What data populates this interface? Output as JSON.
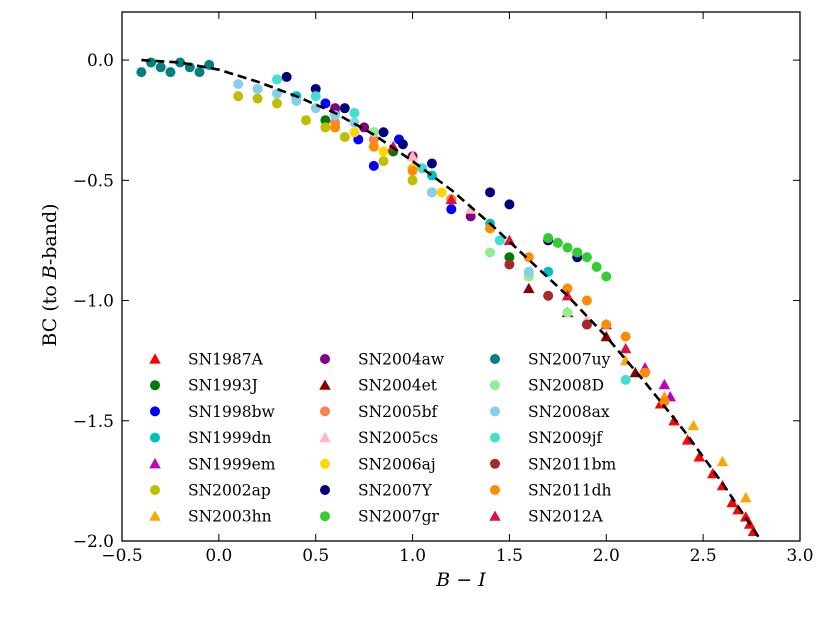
{
  "chart_data": {
    "type": "scatter",
    "xlabel": "B − I",
    "ylabel": "BC (to B-band)",
    "xlim": [
      -0.5,
      3.0
    ],
    "ylim": [
      -2.0,
      0.2
    ],
    "xticks": [
      "−0.5",
      "0.0",
      "0.5",
      "1.0",
      "1.5",
      "2.0",
      "2.5",
      "3.0"
    ],
    "yticks": [
      "0.0",
      "−0.5",
      "−1.0",
      "−1.5",
      "−2.0"
    ],
    "grid": false,
    "legend_position": "lower-left",
    "fit_curve": {
      "style": "dashed",
      "color": "#000000",
      "x": [
        -0.4,
        -0.2,
        0.0,
        0.2,
        0.4,
        0.6,
        0.8,
        1.0,
        1.2,
        1.4,
        1.6,
        1.8,
        2.0,
        2.2,
        2.4,
        2.6,
        2.8
      ],
      "y": [
        0.0,
        -0.01,
        -0.04,
        -0.09,
        -0.15,
        -0.22,
        -0.31,
        -0.42,
        -0.54,
        -0.68,
        -0.83,
        -0.98,
        -1.15,
        -1.34,
        -1.54,
        -1.76,
        -2.0
      ]
    },
    "series": [
      {
        "name": "SN1987A",
        "marker": "triangle",
        "color": "#ff0000",
        "x": [
          2.28,
          2.35,
          2.42,
          2.48,
          2.55,
          2.6,
          2.65,
          2.68,
          2.72,
          2.74,
          2.76
        ],
        "y": [
          -1.43,
          -1.5,
          -1.58,
          -1.65,
          -1.72,
          -1.77,
          -1.84,
          -1.87,
          -1.9,
          -1.93,
          -1.96
        ]
      },
      {
        "name": "SN1993J",
        "marker": "circle",
        "color": "#007a00",
        "x": [
          0.55,
          0.9,
          1.2,
          1.5
        ],
        "y": [
          -0.25,
          -0.38,
          -0.58,
          -0.82
        ]
      },
      {
        "name": "SN1998bw",
        "marker": "circle",
        "color": "#0000ff",
        "x": [
          0.55,
          0.72,
          0.8,
          0.93,
          1.2
        ],
        "y": [
          -0.18,
          -0.33,
          -0.44,
          -0.33,
          -0.62
        ]
      },
      {
        "name": "SN1999dn",
        "marker": "circle",
        "color": "#00bfbf",
        "x": [
          0.4,
          0.6,
          0.8,
          1.1,
          1.4,
          1.7
        ],
        "y": [
          -0.15,
          -0.22,
          -0.3,
          -0.48,
          -0.68,
          -0.88
        ]
      },
      {
        "name": "SN1999em",
        "marker": "triangle",
        "color": "#bf00bf",
        "x": [
          2.0,
          2.2,
          2.3,
          2.33
        ],
        "y": [
          -1.1,
          -1.28,
          -1.35,
          -1.4
        ]
      },
      {
        "name": "SN2002ap",
        "marker": "circle",
        "color": "#bfbf00",
        "x": [
          0.1,
          0.2,
          0.3,
          0.45,
          0.55,
          0.65,
          0.85,
          1.0
        ],
        "y": [
          -0.15,
          -0.16,
          -0.18,
          -0.25,
          -0.28,
          -0.32,
          -0.42,
          -0.5
        ]
      },
      {
        "name": "SN2003hn",
        "marker": "triangle",
        "color": "#ffa500",
        "x": [
          2.1,
          2.3,
          2.45,
          2.6,
          2.72
        ],
        "y": [
          -1.25,
          -1.4,
          -1.52,
          -1.67,
          -1.82
        ]
      },
      {
        "name": "SN2004aw",
        "marker": "circle",
        "color": "#800080",
        "x": [
          0.6,
          0.75,
          1.0,
          1.3
        ],
        "y": [
          -0.2,
          -0.28,
          -0.4,
          -0.65
        ]
      },
      {
        "name": "SN2004et",
        "marker": "triangle",
        "color": "#8b0000",
        "x": [
          1.6,
          1.8,
          2.0,
          2.15
        ],
        "y": [
          -0.95,
          -1.05,
          -1.15,
          -1.3
        ]
      },
      {
        "name": "SN2005bf",
        "marker": "circle",
        "color": "#ff7f50",
        "x": [
          0.6,
          0.8,
          1.0,
          1.2
        ],
        "y": [
          -0.26,
          -0.33,
          -0.45,
          -0.58
        ]
      },
      {
        "name": "SN2005cs",
        "marker": "triangle",
        "color": "#ffb6c1",
        "x": [
          1.0,
          1.3,
          1.6,
          1.9
        ],
        "y": [
          -0.4,
          -0.62,
          -0.88,
          -1.08
        ]
      },
      {
        "name": "SN2006aj",
        "marker": "circle",
        "color": "#ffd700",
        "x": [
          0.7,
          0.85,
          1.0,
          1.15
        ],
        "y": [
          -0.3,
          -0.38,
          -0.45,
          -0.55
        ]
      },
      {
        "name": "SN2007Y",
        "marker": "circle",
        "color": "#000080",
        "x": [
          0.35,
          0.5,
          0.65,
          0.85,
          0.95,
          1.1,
          1.4,
          1.5,
          1.7,
          1.85
        ],
        "y": [
          -0.07,
          -0.12,
          -0.2,
          -0.3,
          -0.35,
          -0.43,
          -0.55,
          -0.6,
          -0.75,
          -0.82
        ]
      },
      {
        "name": "SN2007gr",
        "marker": "circle",
        "color": "#32cd32",
        "x": [
          1.7,
          1.75,
          1.8,
          1.85,
          1.9,
          1.95,
          2.0
        ],
        "y": [
          -0.74,
          -0.76,
          -0.78,
          -0.8,
          -0.82,
          -0.86,
          -0.9
        ]
      },
      {
        "name": "SN2007uy",
        "marker": "circle",
        "color": "#008080",
        "x": [
          -0.4,
          -0.35,
          -0.3,
          -0.25,
          -0.2,
          -0.15,
          -0.1,
          -0.05
        ],
        "y": [
          -0.05,
          -0.01,
          -0.03,
          -0.05,
          -0.01,
          -0.03,
          -0.05,
          -0.02
        ]
      },
      {
        "name": "SN2008D",
        "marker": "circle",
        "color": "#90ee90",
        "x": [
          0.8,
          1.1,
          1.4,
          1.6,
          1.8
        ],
        "y": [
          -0.3,
          -0.55,
          -0.8,
          -0.9,
          -1.05
        ]
      },
      {
        "name": "SN2008ax",
        "marker": "circle",
        "color": "#87ceeb",
        "x": [
          0.1,
          0.2,
          0.3,
          0.4,
          0.5,
          0.6,
          0.7,
          1.1,
          1.6
        ],
        "y": [
          -0.1,
          -0.12,
          -0.14,
          -0.17,
          -0.2,
          -0.23,
          -0.26,
          -0.55,
          -0.88
        ]
      },
      {
        "name": "SN2009jf",
        "marker": "circle",
        "color": "#40e0d0",
        "x": [
          0.3,
          0.5,
          0.7,
          1.05,
          1.45,
          2.1
        ],
        "y": [
          -0.08,
          -0.15,
          -0.22,
          -0.45,
          -0.75,
          -1.33
        ]
      },
      {
        "name": "SN2011bm",
        "marker": "circle",
        "color": "#a52a2a",
        "x": [
          1.5,
          1.7,
          1.9
        ],
        "y": [
          -0.85,
          -0.98,
          -1.1
        ]
      },
      {
        "name": "SN2011dh",
        "marker": "circle",
        "color": "#ff8c00",
        "x": [
          0.6,
          0.8,
          1.0,
          1.2,
          1.4,
          1.6,
          1.8,
          1.9,
          2.0,
          2.1,
          2.2,
          2.3
        ],
        "y": [
          -0.28,
          -0.36,
          -0.46,
          -0.58,
          -0.7,
          -0.82,
          -0.95,
          -1.0,
          -1.1,
          -1.15,
          -1.3,
          -1.42
        ]
      },
      {
        "name": "SN2012A",
        "marker": "triangle",
        "color": "#dc143c",
        "x": [
          0.9,
          1.2,
          1.5,
          1.8,
          2.1
        ],
        "y": [
          -0.36,
          -0.58,
          -0.75,
          -0.98,
          -1.2
        ]
      }
    ]
  }
}
